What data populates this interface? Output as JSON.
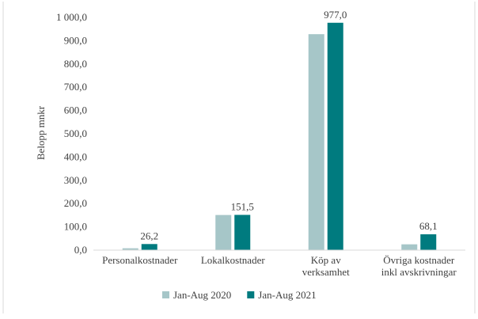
{
  "chart_data": {
    "type": "bar",
    "categories": [
      [
        "Personalkostnader"
      ],
      [
        "Lokalkostnader"
      ],
      [
        "Köp av",
        "verksamhet"
      ],
      [
        "Övriga kostnader",
        "inkl avskrivningar"
      ]
    ],
    "series": [
      {
        "name": "Jan-Aug 2020",
        "values": [
          8.0,
          151.0,
          928.0,
          25.0
        ],
        "data_labels": [
          null,
          null,
          null,
          null
        ],
        "color": "#a6c6c8"
      },
      {
        "name": "Jan-Aug 2021",
        "values": [
          26.2,
          151.5,
          977.0,
          68.1
        ],
        "data_labels": [
          "26,2",
          "151,5",
          "977,0",
          "68,1"
        ],
        "color": "#007b7f"
      }
    ],
    "ylabel": "Belopp mnkr",
    "xlabel": "",
    "ylim": [
      0,
      1000
    ],
    "ytick_values": [
      0,
      100,
      200,
      300,
      400,
      500,
      600,
      700,
      800,
      900,
      1000
    ],
    "ytick_labels": [
      "0,0",
      "100,0",
      "200,0",
      "300,0",
      "400,0",
      "500,0",
      "600,0",
      "700,0",
      "800,0",
      "900,0",
      "1 000,0"
    ],
    "grid": false,
    "legend_position": "bottom"
  }
}
